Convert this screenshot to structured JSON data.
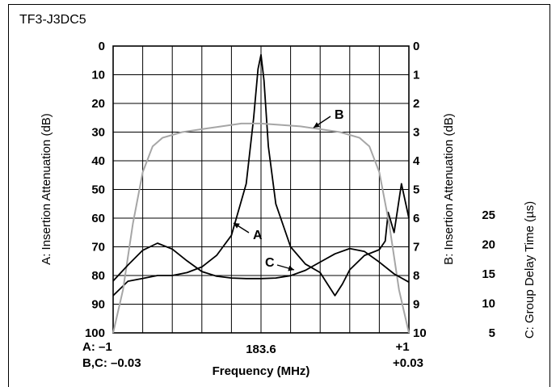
{
  "figure_id": "TF3-J3DC5",
  "chart_data": {
    "type": "line",
    "title": "",
    "xlabel": "Frequency (MHz)",
    "x_center_label": "183.6",
    "x_span_A": {
      "min_label": "A: –1",
      "max_label": "+1",
      "min": -1,
      "max": 1
    },
    "x_span_BC": {
      "min_label": "B,C: –0.03",
      "max_label": "+0.03",
      "min": -0.03,
      "max": 0.03
    },
    "y_left": {
      "label": "A: Insertion Attenuation (dB)",
      "min": 0,
      "max": 100,
      "ticks": [
        "0",
        "10",
        "20",
        "30",
        "40",
        "50",
        "60",
        "70",
        "80",
        "90",
        "100"
      ],
      "inverted": true
    },
    "y_right_B": {
      "label": "B: Insertion Attenuation (dB)",
      "min": 0,
      "max": 10,
      "ticks": [
        "0",
        "1",
        "2",
        "3",
        "4",
        "5",
        "6",
        "7",
        "8",
        "9",
        "10"
      ],
      "inverted": true
    },
    "y_right_C": {
      "label": "C: Group Delay Time (µs)",
      "min": 5,
      "max": 25,
      "ticks": [
        "5",
        "10",
        "15",
        "20",
        "25"
      ]
    },
    "grid": true,
    "series": [
      {
        "name": "A",
        "color": "#000000",
        "axis": "y_left",
        "x": [
          -1,
          -0.9,
          -0.8,
          -0.7,
          -0.6,
          -0.5,
          -0.4,
          -0.3,
          -0.2,
          -0.1,
          -0.05,
          -0.02,
          0,
          0.02,
          0.05,
          0.1,
          0.2,
          0.3,
          0.4,
          0.45,
          0.5,
          0.55,
          0.6,
          0.7,
          0.75,
          0.8,
          0.84,
          0.86,
          0.9,
          0.95,
          1.0
        ],
        "y": [
          87,
          82,
          81,
          80,
          80,
          79,
          77,
          73,
          66,
          48,
          25,
          8,
          3,
          12,
          35,
          55,
          70,
          76,
          79,
          83,
          87,
          83,
          78,
          73,
          72,
          71,
          68,
          58,
          65,
          48,
          60
        ]
      },
      {
        "name": "B",
        "color": "#a6a6a6",
        "axis": "y_right_B",
        "x": [
          -0.03,
          -0.028,
          -0.026,
          -0.024,
          -0.022,
          -0.02,
          -0.016,
          -0.012,
          -0.008,
          -0.004,
          0,
          0.004,
          0.008,
          0.012,
          0.016,
          0.02,
          0.022,
          0.024,
          0.026,
          0.028,
          0.03
        ],
        "y": [
          10,
          8.5,
          6.2,
          4.4,
          3.5,
          3.2,
          3.0,
          2.9,
          2.8,
          2.7,
          2.7,
          2.75,
          2.8,
          2.9,
          3.0,
          3.2,
          3.5,
          4.4,
          6.2,
          8.5,
          10
        ]
      },
      {
        "name": "C",
        "color": "#000000",
        "axis": "y_right_C",
        "x": [
          -0.03,
          -0.027,
          -0.024,
          -0.021,
          -0.018,
          -0.015,
          -0.012,
          -0.009,
          -0.006,
          -0.003,
          0,
          0.003,
          0.006,
          0.009,
          0.012,
          0.015,
          0.018,
          0.021,
          0.024,
          0.027,
          0.03
        ],
        "y": [
          13.8,
          16.5,
          19.0,
          20.2,
          19.2,
          17.2,
          15.4,
          14.6,
          14.3,
          14.2,
          14.2,
          14.3,
          14.7,
          15.6,
          17.0,
          18.4,
          19.3,
          18.8,
          17.0,
          15.0,
          13.6
        ]
      }
    ],
    "annotations": [
      "A",
      "B",
      "C"
    ]
  }
}
